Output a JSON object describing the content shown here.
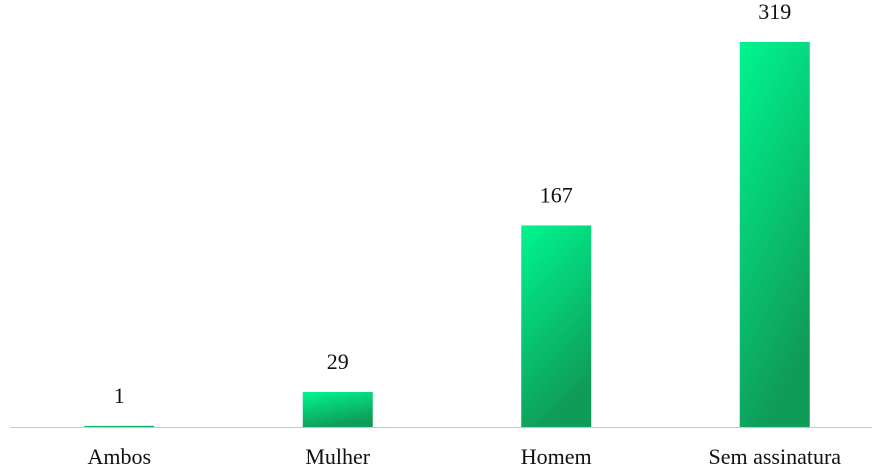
{
  "chart_data": {
    "type": "bar",
    "categories": [
      "Ambos",
      "Mulher",
      "Homem",
      "Sem assinatura"
    ],
    "values": [
      1,
      29,
      167,
      319
    ],
    "color": "#00f590"
  }
}
